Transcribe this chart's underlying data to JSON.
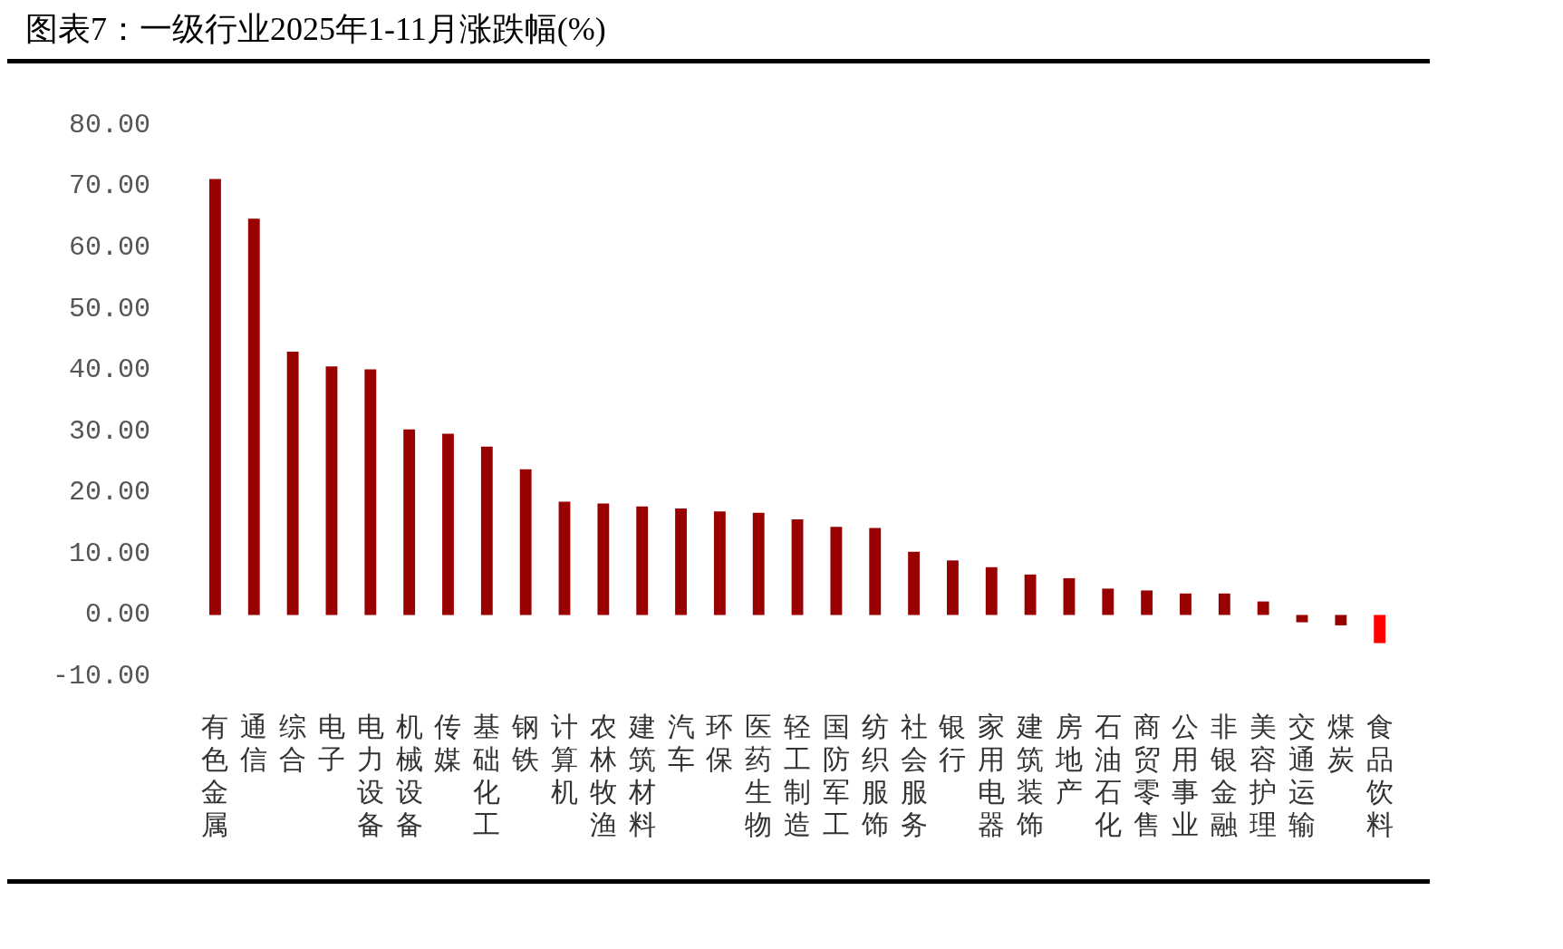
{
  "chart_data": {
    "type": "bar",
    "title": "图表7：一级行业2025年1-11月涨跌幅(%)",
    "categories": [
      "有色金属",
      "通信",
      "综合",
      "电子",
      "电力设备",
      "机械设备",
      "传媒",
      "基础化工",
      "钢铁",
      "计算机",
      "农林牧渔",
      "建筑材料",
      "汽车",
      "环保",
      "医药生物",
      "轻工制造",
      "国防军工",
      "纺织服饰",
      "社会服务",
      "银行",
      "家用电器",
      "建筑装饰",
      "房地产",
      "石油石化",
      "商贸零售",
      "公用事业",
      "非银金融",
      "美容护理",
      "交通运输",
      "煤炭",
      "食品饮料"
    ],
    "values": [
      71.2,
      64.7,
      43.0,
      40.6,
      40.1,
      30.3,
      29.6,
      27.5,
      23.8,
      18.5,
      18.2,
      17.7,
      17.4,
      16.9,
      16.7,
      15.6,
      14.4,
      14.2,
      10.3,
      8.9,
      7.8,
      6.6,
      6.0,
      4.3,
      4.0,
      3.5,
      3.5,
      2.2,
      -1.2,
      -1.7,
      -4.6
    ],
    "colors": [
      "#990000",
      "#990000",
      "#990000",
      "#990000",
      "#990000",
      "#990000",
      "#990000",
      "#990000",
      "#990000",
      "#990000",
      "#990000",
      "#990000",
      "#990000",
      "#990000",
      "#990000",
      "#990000",
      "#990000",
      "#990000",
      "#990000",
      "#990000",
      "#990000",
      "#990000",
      "#990000",
      "#990000",
      "#990000",
      "#990000",
      "#990000",
      "#990000",
      "#990000",
      "#990000",
      "#ff0000"
    ],
    "ylim": [
      -10,
      80
    ],
    "yticks": [
      {
        "value": -10,
        "label": "-10.00"
      },
      {
        "value": 0,
        "label": "0.00"
      },
      {
        "value": 10,
        "label": "10.00"
      },
      {
        "value": 20,
        "label": "20.00"
      },
      {
        "value": 30,
        "label": "30.00"
      },
      {
        "value": 40,
        "label": "40.00"
      },
      {
        "value": 50,
        "label": "50.00"
      },
      {
        "value": 60,
        "label": "60.00"
      },
      {
        "value": 70,
        "label": "70.00"
      },
      {
        "value": 80,
        "label": "80.00"
      }
    ],
    "grid": false,
    "legend": false
  }
}
